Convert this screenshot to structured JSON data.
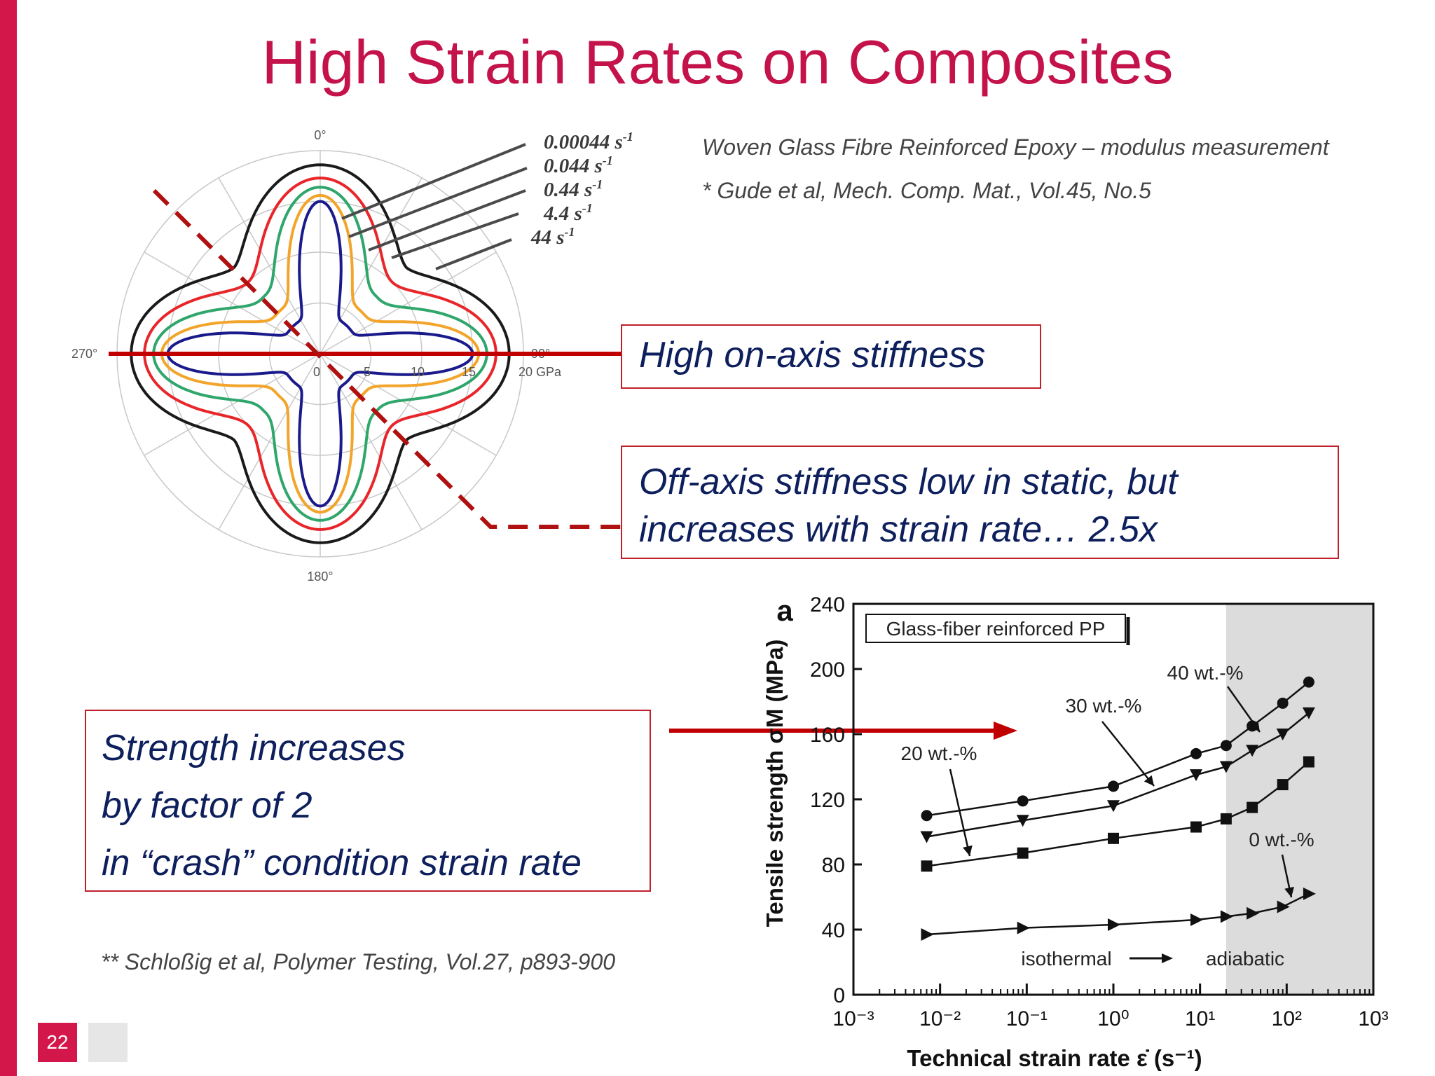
{
  "slide": {
    "title": "High Strain Rates on Composites",
    "page_number": "22",
    "accent_color": "#d4174a"
  },
  "references": {
    "subtitle": "Woven Glass Fibre Reinforced Epoxy – modulus measurement",
    "ref1": "* Gude et al, Mech. Comp. Mat., Vol.45, No.5",
    "ref2": "** Schloßig et al, Polymer Testing, Vol.27, p893-900"
  },
  "callouts": {
    "on_axis": "High on-axis stiffness",
    "off_axis_line1": "Off-axis stiffness low in static, but",
    "off_axis_line2": "increases with strain rate… 2.5x",
    "strength_line1": "Strength increases",
    "strength_line2": "by factor of 2",
    "strength_line3": "in “crash” condition strain rate"
  },
  "polar": {
    "angle_labels": {
      "top": "0°",
      "right": "90°",
      "bottom": "180°",
      "left": "270°"
    },
    "radius_labels": [
      "0",
      "5",
      "10",
      "15",
      "20 GPa"
    ],
    "rates": [
      {
        "base": "0.00044 s",
        "exp": "-1",
        "color": "#1a1a8c"
      },
      {
        "base": "0.044 s",
        "exp": "-1",
        "color": "#f2a52a"
      },
      {
        "base": "0.44 s",
        "exp": "-1",
        "color": "#2fa66b"
      },
      {
        "base": "4.4 s",
        "exp": "-1",
        "color": "#e8262a"
      },
      {
        "base": "44 s",
        "exp": "-1",
        "color": "#1a1a1a"
      }
    ]
  },
  "chart_data": {
    "type": "line",
    "panel_label": "a",
    "legend_box": "Glass-fiber reinforced PP",
    "xlabel": "Technical strain rate ε̇ (s⁻¹)",
    "ylabel": "Tensile strength σM (MPa)",
    "x_scale": "log",
    "xlim": [
      0.001,
      1000
    ],
    "ylim": [
      0,
      240
    ],
    "x_tick_labels": [
      "10⁻³",
      "10⁻²",
      "10⁻¹",
      "10⁰",
      "10¹",
      "10²",
      "10³"
    ],
    "y_ticks": [
      0,
      40,
      80,
      120,
      160,
      200,
      240
    ],
    "shaded_region_x": [
      20,
      1000
    ],
    "regime_labels": {
      "left": "isothermal",
      "right": "adiabatic"
    },
    "series": [
      {
        "name": "40 wt.-%",
        "marker": "circle",
        "x": [
          0.007,
          0.09,
          1.0,
          9.0,
          20,
          40,
          90,
          180
        ],
        "y": [
          110,
          119,
          128,
          148,
          153,
          165,
          179,
          192
        ]
      },
      {
        "name": "30 wt.-%",
        "marker": "triangle-down",
        "x": [
          0.007,
          0.09,
          1.0,
          9.0,
          20,
          40,
          90,
          180
        ],
        "y": [
          97,
          107,
          116,
          135,
          140,
          150,
          160,
          173
        ]
      },
      {
        "name": "20 wt.-%",
        "marker": "square",
        "x": [
          0.007,
          0.09,
          1.0,
          9.0,
          20,
          40,
          90,
          180
        ],
        "y": [
          79,
          87,
          96,
          103,
          108,
          115,
          129,
          143
        ]
      },
      {
        "name": "0 wt.-%",
        "marker": "triangle-right",
        "x": [
          0.007,
          0.09,
          1.0,
          9.0,
          20,
          40,
          90,
          180
        ],
        "y": [
          37,
          41,
          43,
          46,
          48,
          50,
          54,
          62
        ]
      }
    ]
  }
}
